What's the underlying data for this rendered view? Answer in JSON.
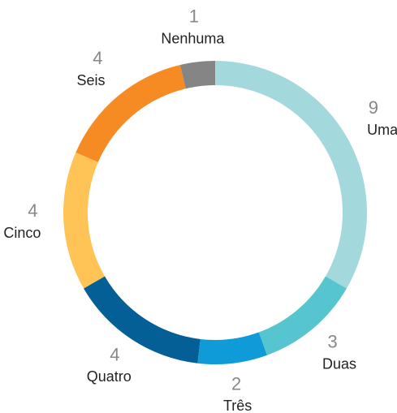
{
  "chart_data": {
    "type": "donut",
    "categories": [
      "Uma",
      "Duas",
      "Três",
      "Quatro",
      "Cinco",
      "Seis",
      "Nenhuma"
    ],
    "values": [
      9,
      3,
      2,
      4,
      4,
      4,
      1
    ],
    "colors": [
      "#a3d9dc",
      "#57c5d0",
      "#0f9ad8",
      "#035f95",
      "#ffc455",
      "#f58b22",
      "#858585"
    ]
  }
}
